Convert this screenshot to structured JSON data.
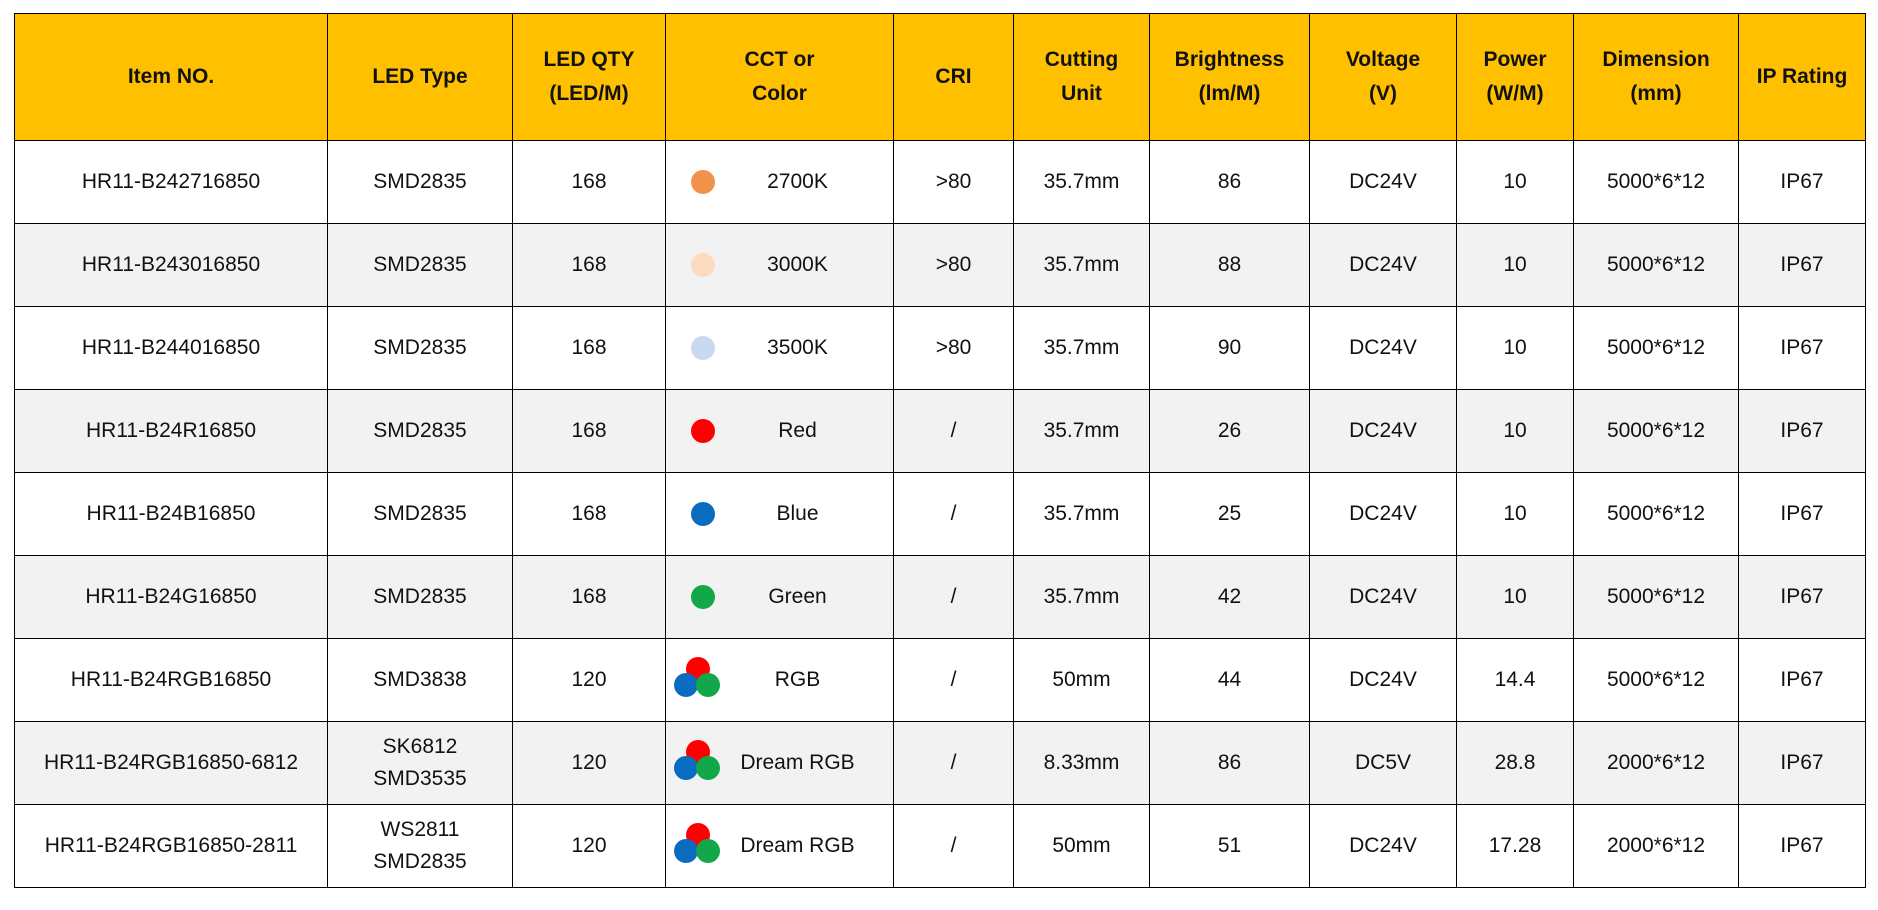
{
  "table": {
    "header": [
      "Item  NO.",
      "LED Type",
      [
        "LED QTY",
        "(LED/M)"
      ],
      [
        "CCT or",
        "Color"
      ],
      "CRI",
      [
        "Cutting",
        "Unit"
      ],
      [
        "Brightness",
        "(lm/M)"
      ],
      [
        "Voltage",
        "(V)"
      ],
      [
        "Power",
        "(W/M)"
      ],
      [
        "Dimension",
        "(mm)"
      ],
      "IP Rating"
    ],
    "rows": [
      {
        "cells": [
          "HR11-B242716850",
          "SMD2835",
          "168",
          "2700K",
          ">80",
          "35.7mm",
          "86",
          "DC24V",
          "10",
          "5000*6*12",
          "IP67"
        ],
        "swatch": [
          "#f0924a"
        ]
      },
      {
        "cells": [
          "HR11-B243016850",
          "SMD2835",
          "168",
          "3000K",
          ">80",
          "35.7mm",
          "88",
          "DC24V",
          "10",
          "5000*6*12",
          "IP67"
        ],
        "swatch": [
          "#fbdcc0"
        ]
      },
      {
        "cells": [
          "HR11-B244016850",
          "SMD2835",
          "168",
          "3500K",
          ">80",
          "35.7mm",
          "90",
          "DC24V",
          "10",
          "5000*6*12",
          "IP67"
        ],
        "swatch": [
          "#c9daf0"
        ]
      },
      {
        "cells": [
          "HR11-B24R16850",
          "SMD2835",
          "168",
          "Red",
          "/",
          "35.7mm",
          "26",
          "DC24V",
          "10",
          "5000*6*12",
          "IP67"
        ],
        "swatch": [
          "#ff0000"
        ]
      },
      {
        "cells": [
          "HR11-B24B16850",
          "SMD2835",
          "168",
          "Blue",
          "/",
          "35.7mm",
          "25",
          "DC24V",
          "10",
          "5000*6*12",
          "IP67"
        ],
        "swatch": [
          "#0a6cc0"
        ]
      },
      {
        "cells": [
          "HR11-B24G16850",
          "SMD2835",
          "168",
          "Green",
          "/",
          "35.7mm",
          "42",
          "DC24V",
          "10",
          "5000*6*12",
          "IP67"
        ],
        "swatch": [
          "#12a84a"
        ]
      },
      {
        "cells": [
          "HR11-B24RGB16850",
          "SMD3838",
          "120",
          "RGB",
          "/",
          "50mm",
          "44",
          "DC24V",
          "14.4",
          "5000*6*12",
          "IP67"
        ],
        "swatch": [
          "#ff0000",
          "#0a6cc0",
          "#12a84a"
        ]
      },
      {
        "cells": [
          "HR11-B24RGB16850-6812",
          [
            "SK6812",
            "SMD3535"
          ],
          "120",
          "Dream RGB",
          "/",
          "8.33mm",
          "86",
          "DC5V",
          "28.8",
          "2000*6*12",
          "IP67"
        ],
        "swatch": [
          "#ff0000",
          "#0a6cc0",
          "#12a84a"
        ]
      },
      {
        "cells": [
          "HR11-B24RGB16850-2811",
          [
            "WS2811",
            "SMD2835"
          ],
          "120",
          "Dream RGB",
          "/",
          "50mm",
          "51",
          "DC24V",
          "17.28",
          "2000*6*12",
          "IP67"
        ],
        "swatch": [
          "#ff0000",
          "#0a6cc0",
          "#12a84a"
        ]
      }
    ]
  }
}
